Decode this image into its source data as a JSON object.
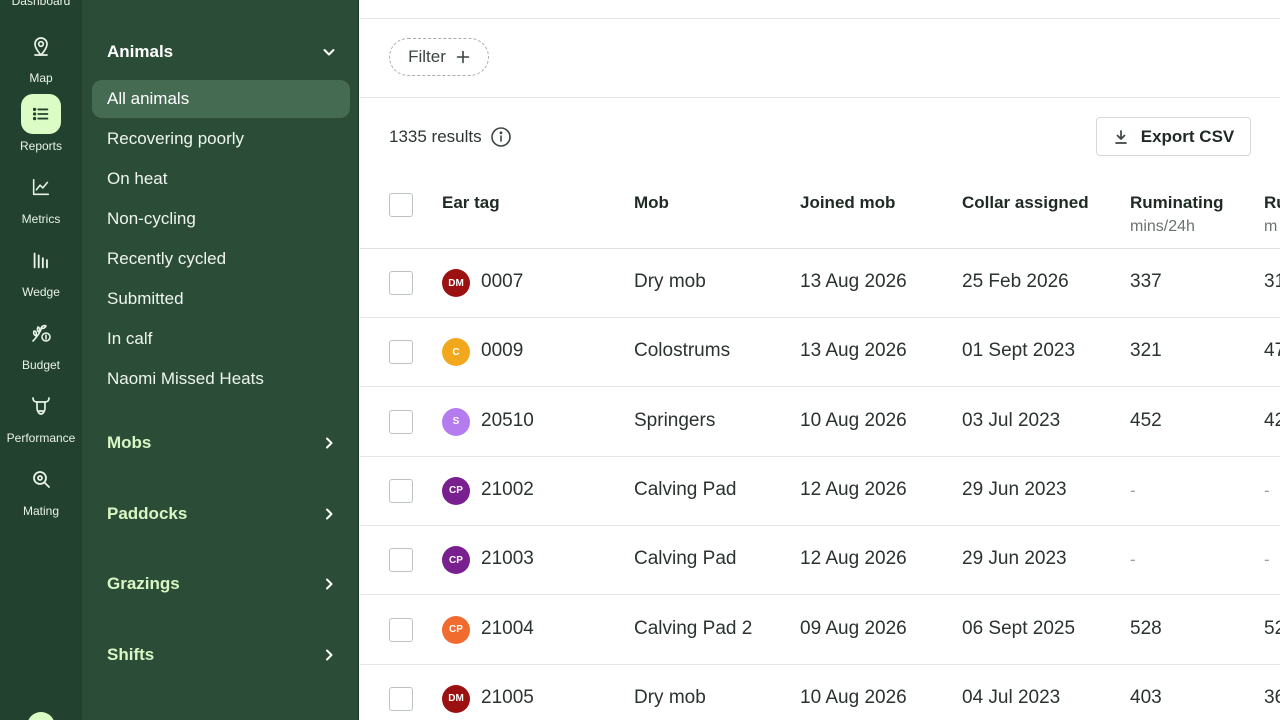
{
  "rail": {
    "top_label": "Dashboard",
    "items": [
      {
        "label": "Map",
        "icon": "map-pin-icon",
        "active": false
      },
      {
        "label": "Reports",
        "icon": "list-icon",
        "active": true
      },
      {
        "label": "Metrics",
        "icon": "line-chart-icon",
        "active": false
      },
      {
        "label": "Wedge",
        "icon": "bar-chart-icon",
        "active": false
      },
      {
        "label": "Budget",
        "icon": "budget-icon",
        "active": false
      },
      {
        "label": "Performance",
        "icon": "cow-icon",
        "active": false
      },
      {
        "label": "Mating",
        "icon": "mating-icon",
        "active": false
      }
    ]
  },
  "subnav": {
    "animals_title": "Animals",
    "animals_items": [
      {
        "label": "All animals",
        "active": true
      },
      {
        "label": "Recovering poorly",
        "active": false
      },
      {
        "label": "On heat",
        "active": false
      },
      {
        "label": "Non-cycling",
        "active": false
      },
      {
        "label": "Recently cycled",
        "active": false
      },
      {
        "label": "Submitted",
        "active": false
      },
      {
        "label": "In calf",
        "active": false
      },
      {
        "label": "Naomi Missed Heats",
        "active": false
      }
    ],
    "sections": [
      "Mobs",
      "Paddocks",
      "Grazings",
      "Shifts"
    ]
  },
  "toolbar": {
    "filter_label": "Filter",
    "results_text": "1335 results",
    "export_label": "Export CSV"
  },
  "table": {
    "columns": [
      {
        "label": "Ear tag",
        "sub": ""
      },
      {
        "label": "Mob",
        "sub": ""
      },
      {
        "label": "Joined mob",
        "sub": ""
      },
      {
        "label": "Collar assigned",
        "sub": ""
      },
      {
        "label": "Ruminating",
        "sub": "mins/24h"
      },
      {
        "label": "Ru",
        "sub": "m"
      }
    ],
    "rows": [
      {
        "badge": "DM",
        "badge_color": "#9b1111",
        "ear_tag": "0007",
        "mob": "Dry mob",
        "joined": "13 Aug 2026",
        "collar": "25 Feb 2026",
        "ruminating": "337",
        "next": "31"
      },
      {
        "badge": "C",
        "badge_color": "#f2a81d",
        "ear_tag": "0009",
        "mob": "Colostrums",
        "joined": "13 Aug 2026",
        "collar": "01 Sept 2023",
        "ruminating": "321",
        "next": "47"
      },
      {
        "badge": "S",
        "badge_color": "#b57cf0",
        "ear_tag": "20510",
        "mob": "Springers",
        "joined": "10 Aug 2026",
        "collar": "03 Jul 2023",
        "ruminating": "452",
        "next": "42"
      },
      {
        "badge": "CP",
        "badge_color": "#7a1f8f",
        "ear_tag": "21002",
        "mob": "Calving Pad",
        "joined": "12 Aug 2026",
        "collar": "29 Jun 2023",
        "ruminating": "-",
        "next": "-"
      },
      {
        "badge": "CP",
        "badge_color": "#7a1f8f",
        "ear_tag": "21003",
        "mob": "Calving Pad",
        "joined": "12 Aug 2026",
        "collar": "29 Jun 2023",
        "ruminating": "-",
        "next": "-"
      },
      {
        "badge": "CP",
        "badge_color": "#f26b2e",
        "ear_tag": "21004",
        "mob": "Calving Pad 2",
        "joined": "09 Aug 2026",
        "collar": "06 Sept 2025",
        "ruminating": "528",
        "next": "52"
      },
      {
        "badge": "DM",
        "badge_color": "#9b1111",
        "ear_tag": "21005",
        "mob": "Dry mob",
        "joined": "10 Aug 2026",
        "collar": "04 Jul 2023",
        "ruminating": "403",
        "next": "36"
      }
    ]
  }
}
